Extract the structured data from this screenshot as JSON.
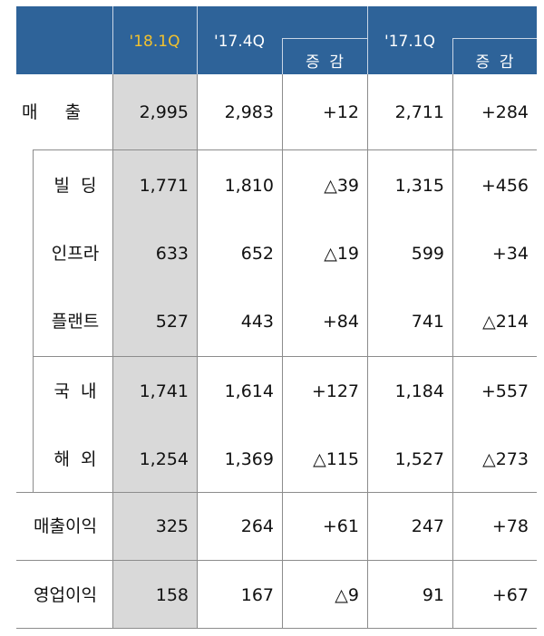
{
  "header": {
    "q1": "'18.1Q",
    "q2": "'17.4Q",
    "d1": "증  감",
    "q3": "'17.1Q",
    "d2": "증  감"
  },
  "colors": {
    "header_bg": "#2e6399",
    "highlight_text": "#f2c12e",
    "highlight_col": "#d9d9d9"
  },
  "rows": [
    {
      "label": "매     출",
      "v": [
        "2,995",
        "2,983",
        "+12",
        "2,711",
        "+284"
      ]
    },
    {
      "label": "빌  딩",
      "v": [
        "1,771",
        "1,810",
        "△39",
        "1,315",
        "+456"
      ]
    },
    {
      "label": "인프라",
      "v": [
        "633",
        "652",
        "△19",
        "599",
        "+34"
      ]
    },
    {
      "label": "플랜트",
      "v": [
        "527",
        "443",
        "+84",
        "741",
        "△214"
      ]
    },
    {
      "label": "국  내",
      "v": [
        "1,741",
        "1,614",
        "+127",
        "1,184",
        "+557"
      ]
    },
    {
      "label": "해  외",
      "v": [
        "1,254",
        "1,369",
        "△115",
        "1,527",
        "△273"
      ]
    },
    {
      "label": "매출이익",
      "v": [
        "325",
        "264",
        "+61",
        "247",
        "+78"
      ]
    },
    {
      "label": "영업이익",
      "v": [
        "158",
        "167",
        "△9",
        "91",
        "+67"
      ]
    }
  ]
}
